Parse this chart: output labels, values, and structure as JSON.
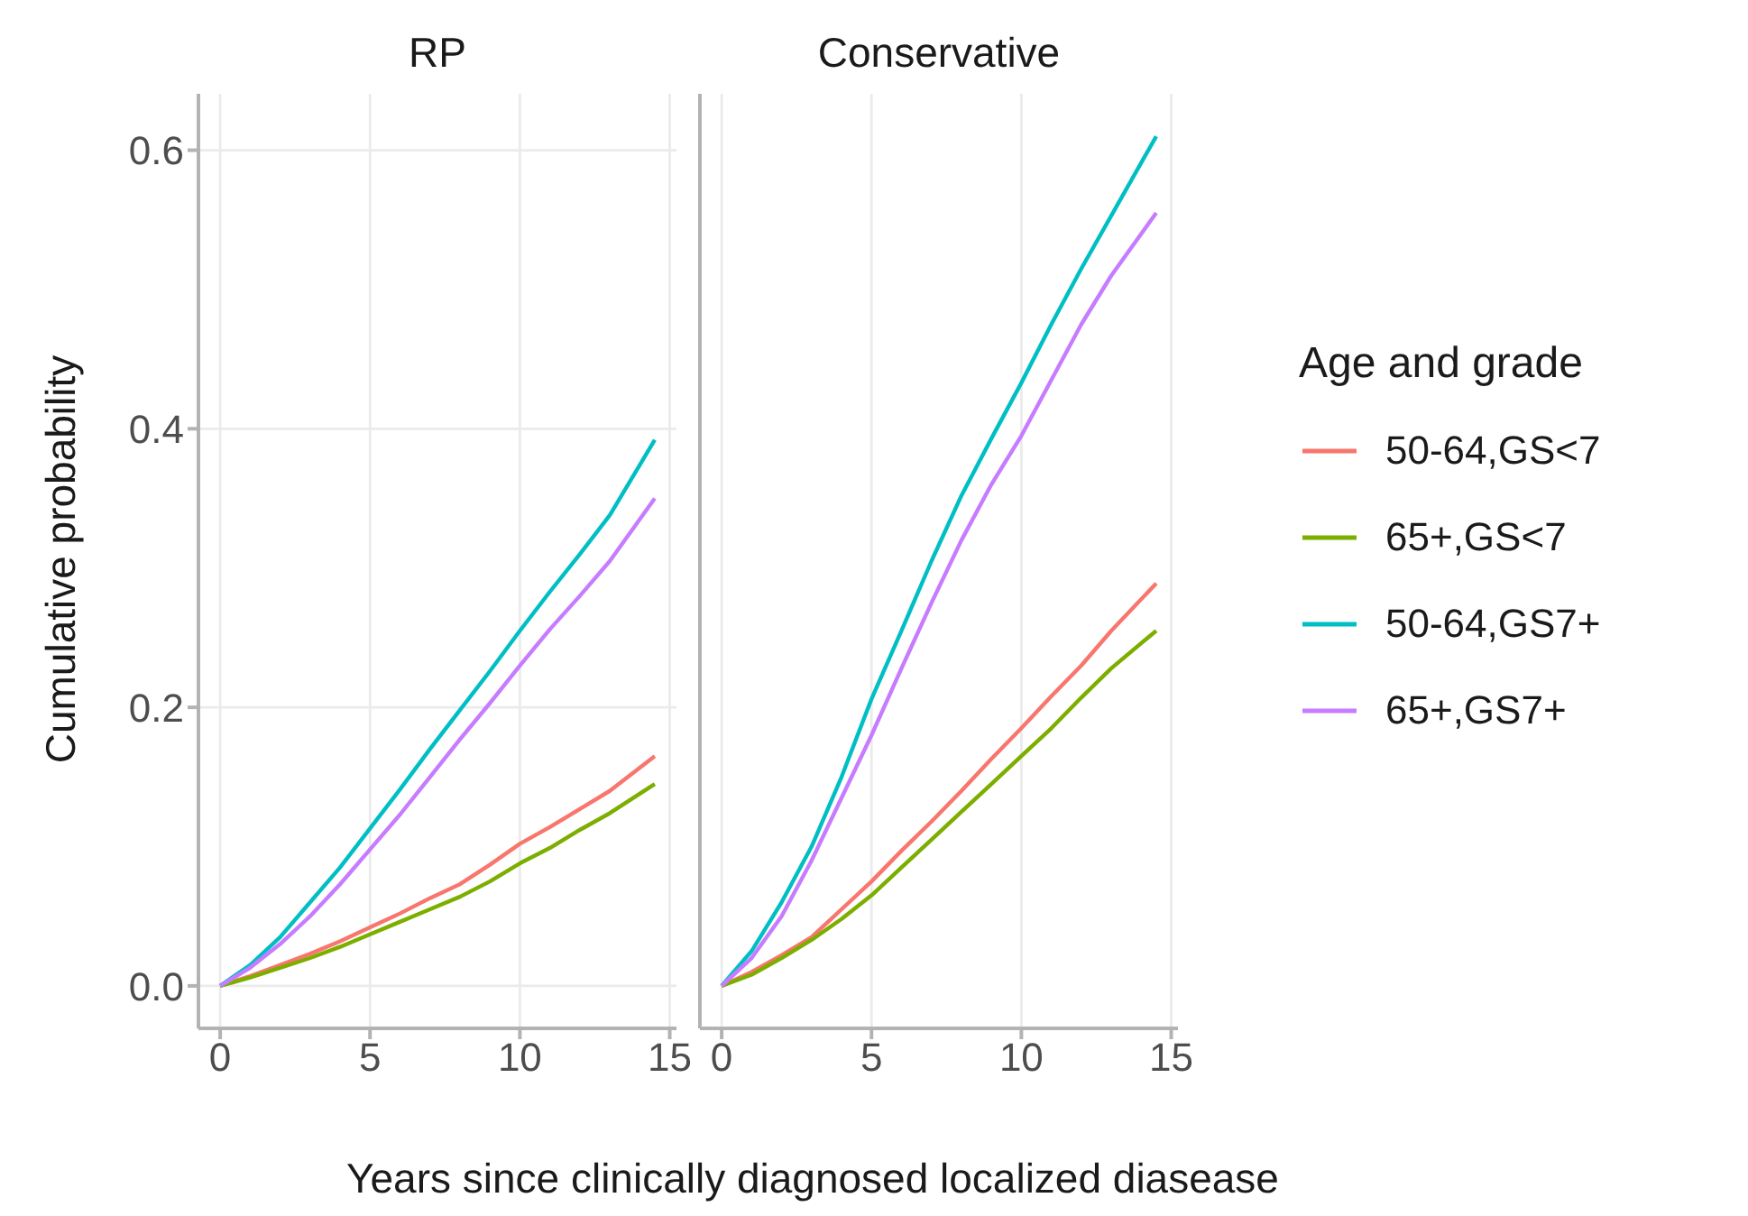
{
  "chart_data": [
    {
      "type": "line",
      "title": "RP",
      "xlabel": "Years since clinically diagnosed localized diasease",
      "ylabel": "Cumulative probability",
      "x": [
        0,
        1,
        2,
        3,
        4,
        5,
        6,
        7,
        8,
        9,
        10,
        11,
        12,
        13,
        14.5
      ],
      "xlim": [
        -0.725,
        15.225
      ],
      "xticks": [
        0,
        5,
        10,
        15
      ],
      "ylim": [
        -0.0305,
        0.6405
      ],
      "yticks": [
        {
          "value": 0,
          "label": "0.0"
        },
        0.2,
        0.4,
        0.6
      ],
      "grid": true,
      "marker": "none",
      "line_style": "solid",
      "series": [
        {
          "color": "#f8766d",
          "values": [
            0,
            0.007,
            0.015,
            0.023,
            0.032,
            0.042,
            0.052,
            0.063,
            0.073,
            0.087,
            0.102,
            0.114,
            0.127,
            0.14,
            0.165
          ]
        },
        {
          "color": "#7cae00",
          "values": [
            0,
            0.006,
            0.013,
            0.02,
            0.028,
            0.037,
            0.046,
            0.055,
            0.064,
            0.075,
            0.088,
            0.099,
            0.112,
            0.124,
            0.145
          ]
        },
        {
          "color": "#00bfc4",
          "values": [
            0,
            0.015,
            0.035,
            0.06,
            0.085,
            0.113,
            0.141,
            0.17,
            0.198,
            0.226,
            0.255,
            0.283,
            0.31,
            0.338,
            0.392
          ]
        },
        {
          "color": "#c77cff",
          "values": [
            0,
            0.013,
            0.03,
            0.05,
            0.073,
            0.098,
            0.123,
            0.15,
            0.177,
            0.203,
            0.23,
            0.256,
            0.28,
            0.305,
            0.35
          ]
        }
      ]
    },
    {
      "type": "line",
      "title": "Conservative",
      "legend_title": "Age and grade",
      "x": [
        0,
        1,
        2,
        3,
        4,
        5,
        6,
        7,
        8,
        9,
        10,
        11,
        12,
        13,
        14.5
      ],
      "xlim": [
        -0.725,
        15.225
      ],
      "xticks": [
        0,
        5,
        10,
        15
      ],
      "ylim": [
        -0.0305,
        0.6405
      ],
      "yticks": [
        0,
        0.2,
        0.4,
        0.6
      ],
      "tick_labels": "x",
      "grid": true,
      "legend": "right",
      "marker": "none",
      "line_style": "solid",
      "series": [
        {
          "name": "50-64,GS<7",
          "color": "#f8766d",
          "values": [
            0,
            0.01,
            0.022,
            0.035,
            0.055,
            0.075,
            0.097,
            0.118,
            0.14,
            0.163,
            0.185,
            0.208,
            0.23,
            0.255,
            0.289
          ]
        },
        {
          "name": "65+,GS<7",
          "color": "#7cae00",
          "values": [
            0,
            0.008,
            0.02,
            0.033,
            0.048,
            0.065,
            0.085,
            0.105,
            0.125,
            0.145,
            0.165,
            0.185,
            0.207,
            0.228,
            0.255
          ]
        },
        {
          "name": "50-64,GS7+",
          "color": "#00bfc4",
          "values": [
            0,
            0.025,
            0.06,
            0.1,
            0.15,
            0.206,
            0.255,
            0.305,
            0.352,
            0.393,
            0.433,
            0.475,
            0.515,
            0.553,
            0.61
          ]
        },
        {
          "name": "65+,GS7+",
          "color": "#c77cff",
          "values": [
            0,
            0.02,
            0.05,
            0.09,
            0.135,
            0.18,
            0.228,
            0.275,
            0.32,
            0.36,
            0.395,
            0.435,
            0.475,
            0.51,
            0.555
          ]
        }
      ]
    }
  ]
}
